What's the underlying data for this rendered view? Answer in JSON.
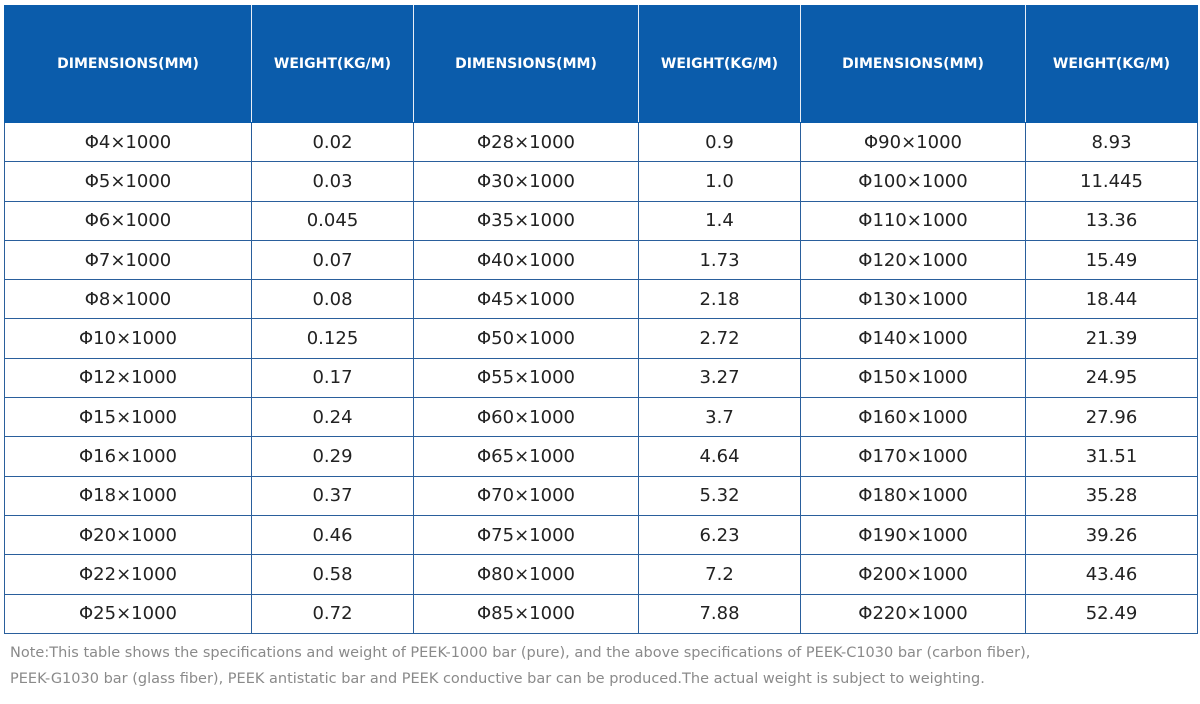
{
  "table": {
    "headers": [
      "DIMENSIONS(MM)",
      "WEIGHT(KG/M)",
      "DIMENSIONS(MM)",
      "WEIGHT(KG/M)",
      "DIMENSIONS(MM)",
      "WEIGHT(KG/M)"
    ],
    "rows": [
      [
        "Φ4×1000",
        "0.02",
        "Φ28×1000",
        "0.9",
        "Φ90×1000",
        "8.93"
      ],
      [
        "Φ5×1000",
        "0.03",
        "Φ30×1000",
        "1.0",
        "Φ100×1000",
        "11.445"
      ],
      [
        "Φ6×1000",
        "0.045",
        "Φ35×1000",
        "1.4",
        "Φ110×1000",
        "13.36"
      ],
      [
        "Φ7×1000",
        "0.07",
        "Φ40×1000",
        "1.73",
        "Φ120×1000",
        "15.49"
      ],
      [
        "Φ8×1000",
        "0.08",
        "Φ45×1000",
        "2.18",
        "Φ130×1000",
        "18.44"
      ],
      [
        "Φ10×1000",
        "0.125",
        "Φ50×1000",
        "2.72",
        "Φ140×1000",
        "21.39"
      ],
      [
        "Φ12×1000",
        "0.17",
        "Φ55×1000",
        "3.27",
        "Φ150×1000",
        "24.95"
      ],
      [
        "Φ15×1000",
        "0.24",
        "Φ60×1000",
        "3.7",
        "Φ160×1000",
        "27.96"
      ],
      [
        "Φ16×1000",
        "0.29",
        "Φ65×1000",
        "4.64",
        "Φ170×1000",
        "31.51"
      ],
      [
        "Φ18×1000",
        "0.37",
        "Φ70×1000",
        "5.32",
        "Φ180×1000",
        "35.28"
      ],
      [
        "Φ20×1000",
        "0.46",
        "Φ75×1000",
        "6.23",
        "Φ190×1000",
        "39.26"
      ],
      [
        "Φ22×1000",
        "0.58",
        "Φ80×1000",
        "7.2",
        "Φ200×1000",
        "43.46"
      ],
      [
        "Φ25×1000",
        "0.72",
        "Φ85×1000",
        "7.88",
        "Φ220×1000",
        "52.49"
      ]
    ]
  },
  "note": [
    "Note:This table shows the specifications and weight of PEEK-1000 bar (pure), and the above specifications of PEEK-C1030 bar (carbon fiber),",
    "PEEK-G1030 bar (glass fiber), PEEK antistatic bar and PEEK conductive bar can be produced.The actual weight is subject to weighting."
  ]
}
